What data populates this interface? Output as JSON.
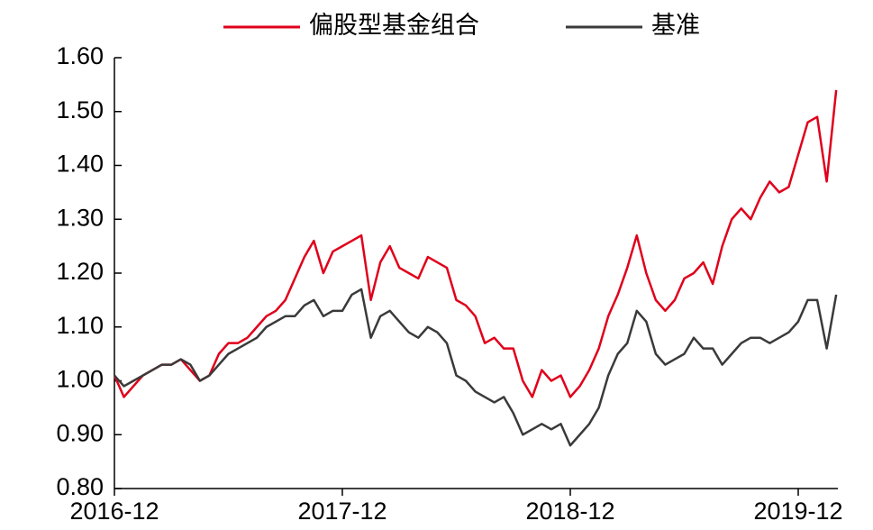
{
  "chart_data": {
    "type": "line",
    "categories": [
      "2016-12",
      null,
      null,
      null,
      null,
      null,
      null,
      null,
      null,
      null,
      null,
      null,
      null,
      null,
      null,
      null,
      null,
      null,
      null,
      null,
      null,
      null,
      null,
      null,
      "2017-12",
      null,
      null,
      null,
      null,
      null,
      null,
      null,
      null,
      null,
      null,
      null,
      null,
      null,
      null,
      null,
      null,
      null,
      null,
      null,
      null,
      null,
      null,
      null,
      "2018-12",
      null,
      null,
      null,
      null,
      null,
      null,
      null,
      null,
      null,
      null,
      null,
      null,
      null,
      null,
      null,
      null,
      null,
      null,
      null,
      null,
      null,
      null,
      null,
      "2019-12",
      null,
      null,
      null,
      null
    ],
    "series": [
      {
        "name": "偏股型基金组合",
        "color": "#e0001b",
        "values": [
          1.01,
          0.97,
          0.99,
          1.01,
          1.02,
          1.03,
          1.03,
          1.04,
          1.02,
          1.0,
          1.01,
          1.05,
          1.07,
          1.07,
          1.08,
          1.1,
          1.12,
          1.13,
          1.15,
          1.19,
          1.23,
          1.26,
          1.2,
          1.24,
          1.25,
          1.26,
          1.27,
          1.15,
          1.22,
          1.25,
          1.21,
          1.2,
          1.19,
          1.23,
          1.22,
          1.21,
          1.15,
          1.14,
          1.12,
          1.07,
          1.08,
          1.06,
          1.06,
          1.0,
          0.97,
          1.02,
          1.0,
          1.01,
          0.97,
          0.99,
          1.02,
          1.06,
          1.12,
          1.16,
          1.21,
          1.27,
          1.2,
          1.15,
          1.13,
          1.15,
          1.19,
          1.2,
          1.22,
          1.18,
          1.25,
          1.3,
          1.32,
          1.3,
          1.34,
          1.37,
          1.35,
          1.36,
          1.42,
          1.48,
          1.49,
          1.37,
          1.54
        ]
      },
      {
        "name": "基准",
        "color": "#3a3a3a",
        "values": [
          1.01,
          0.99,
          1.0,
          1.01,
          1.02,
          1.03,
          1.03,
          1.04,
          1.03,
          1.0,
          1.01,
          1.03,
          1.05,
          1.06,
          1.07,
          1.08,
          1.1,
          1.11,
          1.12,
          1.12,
          1.14,
          1.15,
          1.12,
          1.13,
          1.13,
          1.16,
          1.17,
          1.08,
          1.12,
          1.13,
          1.11,
          1.09,
          1.08,
          1.1,
          1.09,
          1.07,
          1.01,
          1.0,
          0.98,
          0.97,
          0.96,
          0.97,
          0.94,
          0.9,
          0.91,
          0.92,
          0.91,
          0.92,
          0.88,
          0.9,
          0.92,
          0.95,
          1.01,
          1.05,
          1.07,
          1.13,
          1.11,
          1.05,
          1.03,
          1.04,
          1.05,
          1.08,
          1.06,
          1.06,
          1.03,
          1.05,
          1.07,
          1.08,
          1.08,
          1.07,
          1.08,
          1.09,
          1.11,
          1.15,
          1.15,
          1.06,
          1.16
        ]
      }
    ],
    "ylim": [
      0.8,
      1.6
    ],
    "yticks": [
      {
        "value": 0.8,
        "label": "0.80"
      },
      {
        "value": 0.9,
        "label": "0.90"
      },
      {
        "value": 1.0,
        "label": "1.00"
      },
      {
        "value": 1.1,
        "label": "1.10"
      },
      {
        "value": 1.2,
        "label": "1.20"
      },
      {
        "value": 1.3,
        "label": "1.30"
      },
      {
        "value": 1.4,
        "label": "1.40"
      },
      {
        "value": 1.5,
        "label": "1.50"
      },
      {
        "value": 1.6,
        "label": "1.60"
      }
    ],
    "grid": false
  }
}
